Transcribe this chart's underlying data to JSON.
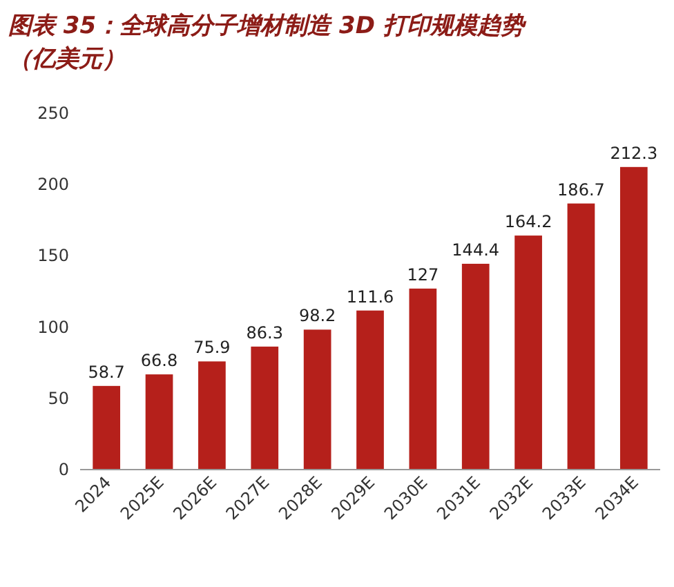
{
  "chart_data": {
    "type": "bar",
    "title": "图表 35：全球高分子增材制造 3D 打印规模趋势（亿美元）",
    "categories": [
      "2024",
      "2025E",
      "2026E",
      "2027E",
      "2028E",
      "2029E",
      "2030E",
      "2031E",
      "2032E",
      "2033E",
      "2034E"
    ],
    "values": [
      58.7,
      66.8,
      75.9,
      86.3,
      98.2,
      111.6,
      127,
      144.4,
      164.2,
      186.7,
      212.3
    ],
    "color": "#b5201b",
    "ylim": [
      0,
      250
    ],
    "yticks": [
      0,
      50,
      100,
      150,
      200,
      250
    ],
    "data_labels": true
  }
}
